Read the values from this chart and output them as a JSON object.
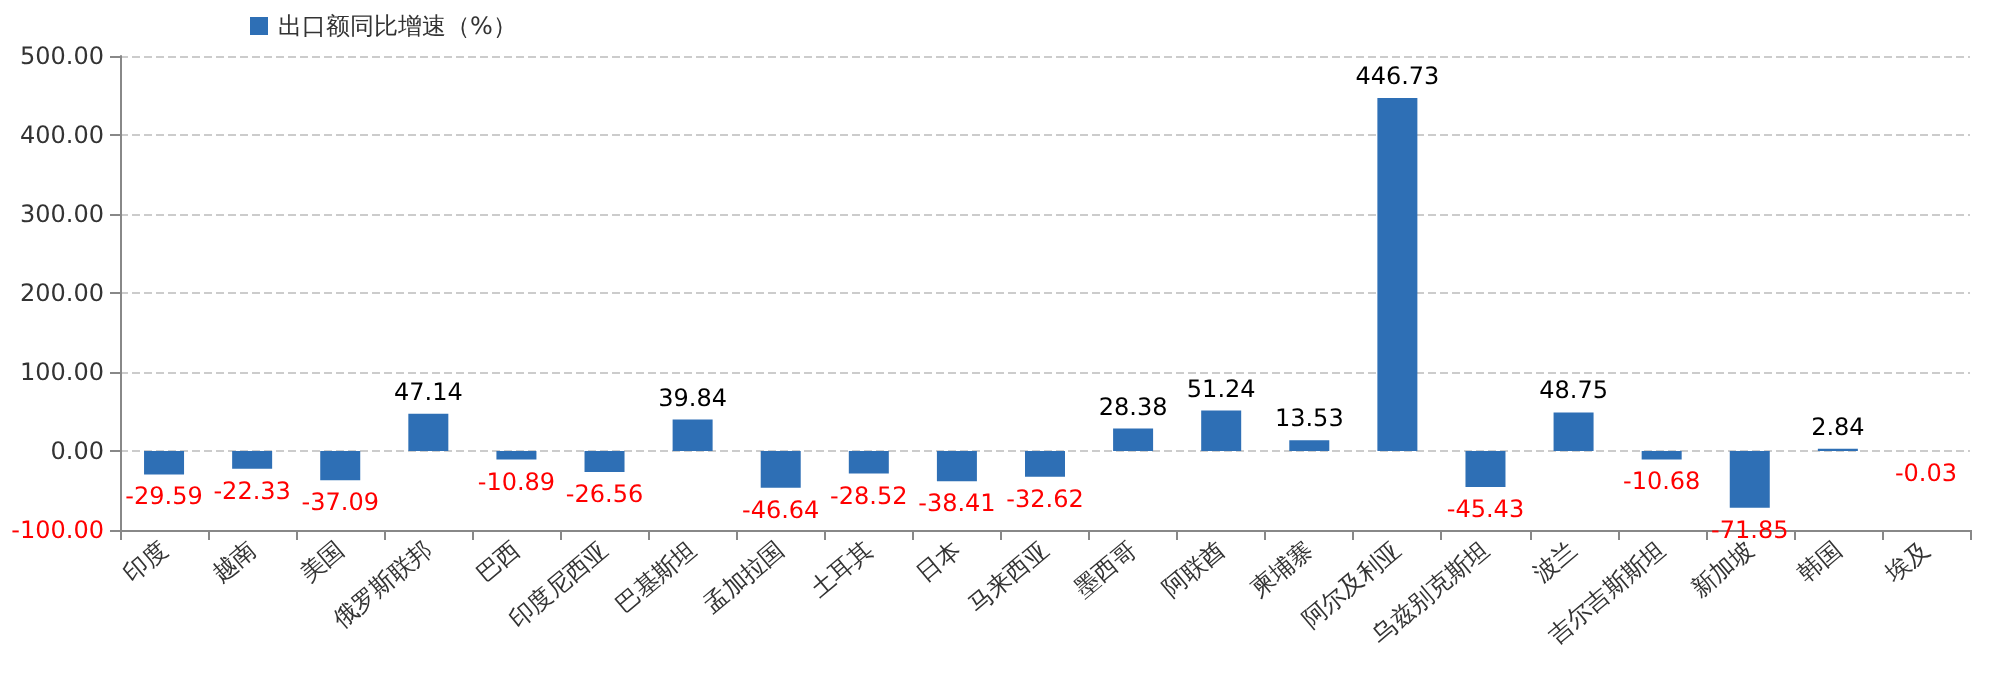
{
  "chart_data": {
    "type": "bar",
    "categories": [
      "印度",
      "越南",
      "美国",
      "俄罗斯联邦",
      "巴西",
      "印度尼西亚",
      "巴基斯坦",
      "孟加拉国",
      "土耳其",
      "日本",
      "马来西亚",
      "墨西哥",
      "阿联酋",
      "柬埔寨",
      "阿尔及利亚",
      "乌兹别克斯坦",
      "波兰",
      "吉尔吉斯斯坦",
      "新加坡",
      "韩国",
      "埃及"
    ],
    "series": [
      {
        "name": "出口额同比增速（%）",
        "color": "#2e6fb5",
        "values": [
          -29.59,
          -22.33,
          -37.09,
          47.14,
          -10.89,
          -26.56,
          39.84,
          -46.64,
          -28.52,
          -38.41,
          -32.62,
          28.38,
          51.24,
          13.53,
          446.73,
          -45.43,
          48.75,
          -10.68,
          -71.85,
          2.84,
          -0.03
        ]
      }
    ],
    "ylim": [
      -100,
      500
    ],
    "yticks": [
      {
        "value": -100,
        "label": "-100.00"
      },
      {
        "value": 0,
        "label": "0.00"
      },
      {
        "value": 100,
        "label": "100.00"
      },
      {
        "value": 200,
        "label": "200.00"
      },
      {
        "value": 300,
        "label": "300.00"
      },
      {
        "value": 400,
        "label": "400.00"
      },
      {
        "value": 500,
        "label": "500.00"
      }
    ],
    "grid": "y",
    "legend": "top",
    "data_labels": true
  }
}
